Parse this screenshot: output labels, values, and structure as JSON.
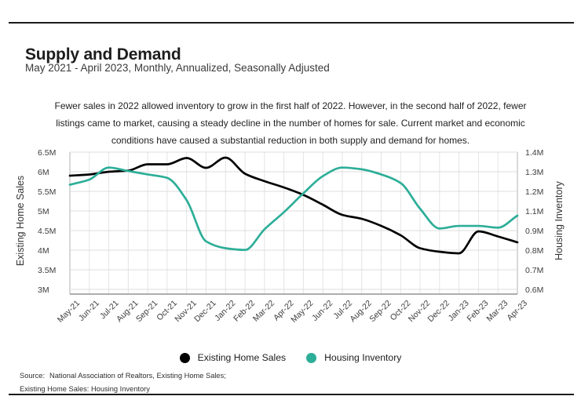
{
  "header": {
    "title": "Supply and Demand",
    "subtitle": "May 2021 - April 2023, Monthly, Annualized, Seasonally Adjusted"
  },
  "description_lines": [
    "Fewer sales in 2022 allowed inventory to grow in the first half of 2022. However, in the second half of 2022, fewer",
    "listings came to market, causing a steady decline in the number of homes for sale. Current market and economic",
    "conditions have caused a substantial reduction in both supply and demand for homes."
  ],
  "chart_data": {
    "type": "line",
    "x": [
      "May-21",
      "Jun-21",
      "Jul-21",
      "Aug-21",
      "Sep-21",
      "Oct-21",
      "Nov-21",
      "Dec-21",
      "Jan-22",
      "Feb-22",
      "Mar-22",
      "Apr-22",
      "May-22",
      "Jun-22",
      "Jul-22",
      "Aug-22",
      "Sep-22",
      "Oct-22",
      "Nov-22",
      "Dec-22",
      "Jan-23",
      "Feb-23",
      "Mar-23",
      "Apr-23"
    ],
    "series": [
      {
        "name": "Existing Home Sales",
        "axis": "left",
        "color": "#000000",
        "values": [
          5.9,
          5.93,
          6.0,
          6.03,
          6.19,
          6.19,
          6.35,
          6.1,
          6.36,
          5.95,
          5.76,
          5.6,
          5.41,
          5.16,
          4.9,
          4.8,
          4.62,
          4.38,
          4.05,
          3.96,
          3.92,
          4.48,
          4.35,
          4.2
        ]
      },
      {
        "name": "Housing Inventory",
        "axis": "right",
        "color": "#2dae98",
        "values": [
          1.21,
          1.24,
          1.31,
          1.29,
          1.27,
          1.25,
          1.12,
          0.88,
          0.84,
          0.83,
          0.95,
          1.05,
          1.16,
          1.26,
          1.31,
          1.3,
          1.27,
          1.22,
          1.07,
          0.955,
          0.97,
          0.97,
          0.96,
          1.03
        ]
      }
    ],
    "left_axis": {
      "label": "Existing Home Sales",
      "ticks": [
        "6.5M",
        "6M",
        "5.5M",
        "5M",
        "4.5M",
        "4M",
        "3.5M",
        "3M"
      ],
      "range": [
        3.0,
        6.5
      ]
    },
    "right_axis": {
      "label": "Housing Inventory",
      "ticks": [
        "1.4M",
        "1.3M",
        "1.2M",
        "1.1M",
        "0.9M",
        "0.8M",
        "0.7M",
        "0.6M"
      ],
      "range": [
        0.6,
        1.4
      ]
    },
    "grid": true,
    "legend_position": "bottom"
  },
  "legend": {
    "items": [
      {
        "label": "Existing Home Sales",
        "color": "#000000"
      },
      {
        "label": "Housing Inventory",
        "color": "#2dae98"
      }
    ]
  },
  "source": {
    "label": "Source:",
    "line1": "National Association of Realtors, Existing Home Sales;",
    "line2": "Existing Home Sales: Housing Inventory"
  }
}
